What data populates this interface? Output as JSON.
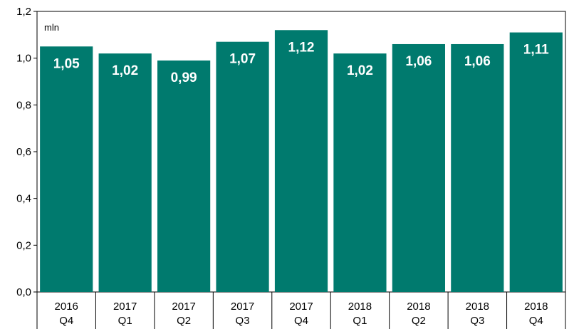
{
  "chart_data": {
    "type": "bar",
    "unit_label": "mln",
    "categories": [
      [
        "2016",
        "Q4"
      ],
      [
        "2017",
        "Q1"
      ],
      [
        "2017",
        "Q2"
      ],
      [
        "2017",
        "Q3"
      ],
      [
        "2017",
        "Q4"
      ],
      [
        "2018",
        "Q1"
      ],
      [
        "2018",
        "Q2"
      ],
      [
        "2018",
        "Q3"
      ],
      [
        "2018",
        "Q4"
      ]
    ],
    "values": [
      1.05,
      1.02,
      0.99,
      1.07,
      1.12,
      1.02,
      1.06,
      1.06,
      1.11
    ],
    "value_labels": [
      "1,05",
      "1,02",
      "0,99",
      "1,07",
      "1,12",
      "1,02",
      "1,06",
      "1,06",
      "1,11"
    ],
    "ylim": [
      0,
      1.2
    ],
    "yticks": [
      0,
      0.2,
      0.4,
      0.6,
      0.8,
      1.0,
      1.2
    ],
    "ytick_labels": [
      "0,0",
      "0,2",
      "0,4",
      "0,6",
      "0,8",
      "1,0",
      "1,2"
    ],
    "grid": false,
    "legend": "none",
    "bar_color": "#007A6E",
    "title": "",
    "xlabel": "",
    "ylabel": ""
  }
}
